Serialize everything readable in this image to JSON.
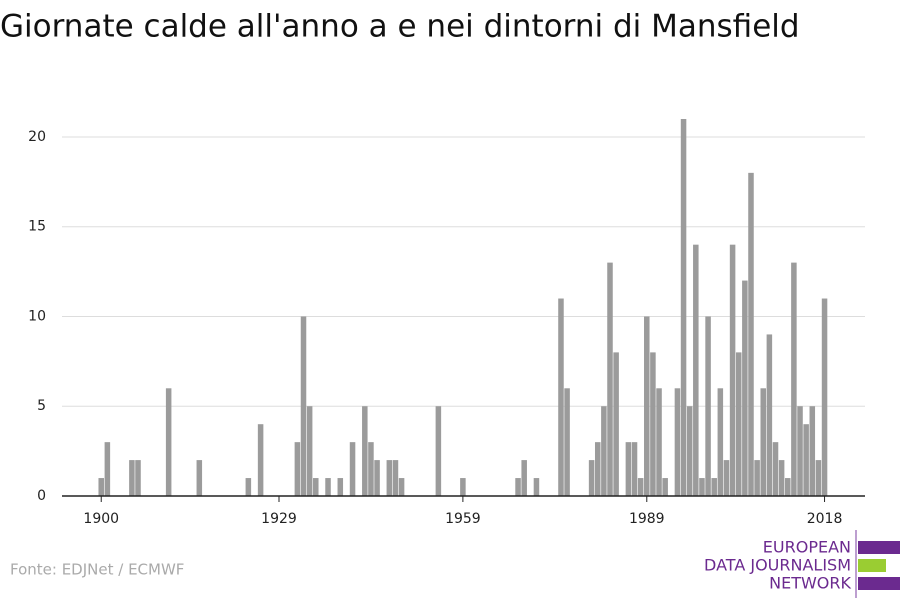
{
  "chart_data": {
    "type": "bar",
    "title": "Giornate calde all'anno a e nei dintorni di Mansfield",
    "source": "Fonte: EDJNet / ECMWF",
    "logo": [
      "EUROPEAN",
      "DATA JOURNALISM",
      "NETWORK"
    ],
    "color": "#9b9b9b",
    "x": [
      1900,
      1901,
      1902,
      1903,
      1904,
      1905,
      1906,
      1907,
      1908,
      1909,
      1910,
      1911,
      1912,
      1913,
      1914,
      1915,
      1916,
      1917,
      1918,
      1919,
      1920,
      1921,
      1922,
      1923,
      1924,
      1925,
      1926,
      1927,
      1928,
      1929,
      1930,
      1931,
      1932,
      1933,
      1934,
      1935,
      1936,
      1937,
      1938,
      1939,
      1940,
      1941,
      1942,
      1943,
      1944,
      1945,
      1946,
      1947,
      1948,
      1949,
      1950,
      1951,
      1952,
      1953,
      1954,
      1955,
      1956,
      1957,
      1958,
      1959,
      1960,
      1961,
      1962,
      1963,
      1964,
      1965,
      1966,
      1967,
      1968,
      1969,
      1970,
      1971,
      1972,
      1973,
      1974,
      1975,
      1976,
      1977,
      1978,
      1979,
      1980,
      1981,
      1982,
      1983,
      1984,
      1985,
      1986,
      1987,
      1988,
      1989,
      1990,
      1991,
      1992,
      1993,
      1994,
      1995,
      1996,
      1997,
      1998,
      1999,
      2000,
      2001,
      2002,
      2003,
      2004,
      2005,
      2006,
      2007,
      2008,
      2009,
      2010,
      2011,
      2012,
      2013,
      2014,
      2015,
      2016,
      2017,
      2018
    ],
    "values": [
      1,
      3,
      0,
      0,
      0,
      2,
      2,
      0,
      0,
      0,
      0,
      6,
      0,
      0,
      0,
      0,
      2,
      0,
      0,
      0,
      0,
      0,
      0,
      0,
      1,
      0,
      4,
      0,
      0,
      0,
      0,
      0,
      3,
      10,
      5,
      1,
      0,
      1,
      0,
      1,
      0,
      3,
      0,
      5,
      3,
      2,
      0,
      2,
      2,
      1,
      0,
      0,
      0,
      0,
      0,
      5,
      0,
      0,
      0,
      1,
      0,
      0,
      0,
      0,
      0,
      0,
      0,
      0,
      1,
      2,
      0,
      1,
      0,
      0,
      0,
      11,
      6,
      0,
      0,
      0,
      2,
      3,
      5,
      13,
      8,
      0,
      3,
      3,
      1,
      10,
      8,
      6,
      1,
      0,
      6,
      21,
      5,
      14,
      1,
      10,
      1,
      6,
      2,
      14,
      8,
      12,
      18,
      2,
      6,
      9,
      3,
      2,
      1,
      13,
      5,
      4,
      5,
      2,
      11
    ],
    "xlim": [
      1893.6,
      2024.6
    ],
    "xticks": [
      1900,
      1929,
      1959,
      1989,
      2018
    ],
    "ylim": [
      0,
      21
    ],
    "yticks": [
      0,
      5,
      10,
      15,
      20
    ],
    "grid": true
  }
}
